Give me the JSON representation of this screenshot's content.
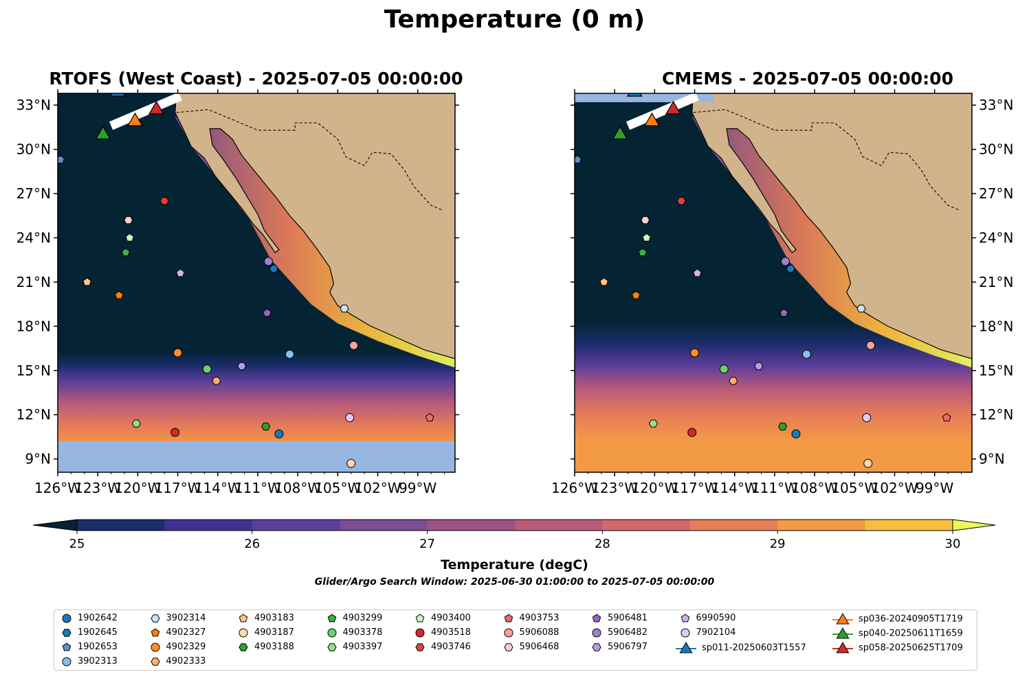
{
  "title": "Temperature (0 m)",
  "panels": [
    {
      "title": "RTOFS (West Coast) - 2025-07-05 00:00:00"
    },
    {
      "title": "CMEMS - 2025-07-05 00:00:00"
    }
  ],
  "axes": {
    "lon_ticks": [
      "126°W",
      "123°W",
      "120°W",
      "117°W",
      "114°W",
      "111°W",
      "108°W",
      "105°W",
      "102°W",
      "99°W"
    ],
    "lon_values": [
      -126,
      -123,
      -120,
      -117,
      -114,
      -111,
      -108,
      -105,
      -102,
      -99
    ],
    "lat_ticks": [
      "33°N",
      "30°N",
      "27°N",
      "24°N",
      "21°N",
      "18°N",
      "15°N",
      "12°N",
      "9°N"
    ],
    "lat_values": [
      33,
      30,
      27,
      24,
      21,
      18,
      15,
      12,
      9
    ],
    "lon_range": [
      -126,
      -96.2
    ],
    "lat_range": [
      8.1,
      33.8
    ]
  },
  "colorbar": {
    "label": "Temperature (degC)",
    "ticks": [
      "25",
      "26",
      "27",
      "28",
      "29",
      "30"
    ],
    "range": [
      25,
      30
    ],
    "extend": "both",
    "colors": [
      "#042333",
      "#1b2c6b",
      "#3d3294",
      "#5d3e9a",
      "#7b4d94",
      "#9c5485",
      "#ba5b7a",
      "#d4676a",
      "#e67d58",
      "#f39a44",
      "#f8be3e",
      "#e8fa5b"
    ]
  },
  "search_window": "Glider/Argo Search Window: 2025-06-30 01:00:00 to 2025-07-05 00:00:00",
  "colors": {
    "land": "#d2b48c",
    "nodata": "#97b6e1",
    "cold": "#042333",
    "warm": "#f39a44",
    "hot": "#e8fa5b"
  },
  "argo_floats": [
    {
      "id": "1902642",
      "marker": "circle",
      "color": "#1f77b4",
      "lon": -109.4,
      "lat": 10.7
    },
    {
      "id": "1902645",
      "marker": "hexagon",
      "color": "#1f77b4",
      "lon": -109.8,
      "lat": 21.9
    },
    {
      "id": "1902653",
      "marker": "pentagon",
      "color": "#5b8fc9",
      "lon": -125.8,
      "lat": 29.3
    },
    {
      "id": "3902313",
      "marker": "circle",
      "color": "#7fc4ea",
      "lon": -108.6,
      "lat": 16.1
    },
    {
      "id": "3902314",
      "marker": "hexagon",
      "color": "#c6e2f7",
      "lon": -104.5,
      "lat": 19.2
    },
    {
      "id": "4902327",
      "marker": "pentagon",
      "color": "#ff7f0e",
      "lon": -121.4,
      "lat": 20.1
    },
    {
      "id": "4902329",
      "marker": "circle",
      "color": "#ff8c2a",
      "lon": -117.0,
      "lat": 16.2
    },
    {
      "id": "4902333",
      "marker": "hexagon",
      "color": "#ffb070",
      "lon": -114.1,
      "lat": 14.3
    },
    {
      "id": "4903183",
      "marker": "pentagon",
      "color": "#ffc38a",
      "lon": -123.8,
      "lat": 21.0
    },
    {
      "id": "4903187",
      "marker": "circle",
      "color": "#ffd9b0",
      "lon": -104.0,
      "lat": 8.7
    },
    {
      "id": "4903188",
      "marker": "hexagon",
      "color": "#2ca02c",
      "lon": -110.4,
      "lat": 11.2
    },
    {
      "id": "4903299",
      "marker": "pentagon",
      "color": "#3cb043",
      "lon": -120.9,
      "lat": 23.0
    },
    {
      "id": "4903378",
      "marker": "circle",
      "color": "#6cd16c",
      "lon": -114.8,
      "lat": 15.1
    },
    {
      "id": "4903397",
      "marker": "hexagon",
      "color": "#98df8a",
      "lon": -120.1,
      "lat": 11.4
    },
    {
      "id": "4903400",
      "marker": "pentagon",
      "color": "#c8f5c0",
      "lon": -120.6,
      "lat": 24.0
    },
    {
      "id": "4903518",
      "marker": "circle",
      "color": "#d62728",
      "lon": -117.2,
      "lat": 10.8
    },
    {
      "id": "4903746",
      "marker": "hexagon",
      "color": "#e0403f",
      "lon": -118.0,
      "lat": 26.5
    },
    {
      "id": "4903753",
      "marker": "pentagon",
      "color": "#f06a6a",
      "lon": -98.1,
      "lat": 11.8
    },
    {
      "id": "5906088",
      "marker": "circle",
      "color": "#f4a0a0",
      "lon": -103.8,
      "lat": 16.7
    },
    {
      "id": "5906468",
      "marker": "hexagon",
      "color": "#fcd0d0",
      "lon": -120.7,
      "lat": 25.2
    },
    {
      "id": "5906481",
      "marker": "pentagon",
      "color": "#9467bd",
      "lon": -110.3,
      "lat": 18.9
    },
    {
      "id": "5906482",
      "marker": "circle",
      "color": "#a07fd0",
      "lon": -110.2,
      "lat": 22.4
    },
    {
      "id": "5906797",
      "marker": "hexagon",
      "color": "#b89ae0",
      "lon": -112.2,
      "lat": 15.3
    },
    {
      "id": "6990590",
      "marker": "pentagon",
      "color": "#d0b0f0",
      "lon": -116.8,
      "lat": 21.6
    },
    {
      "id": "7902104",
      "marker": "circle",
      "color": "#e0c8f8",
      "lon": -104.1,
      "lat": 11.8
    }
  ],
  "gliders": [
    {
      "id": "sp011-20250603T1557",
      "color": "#1f77b4",
      "lon": -121.5,
      "lat": 34.0
    },
    {
      "id": "sp036-20240905T1719",
      "color": "#ff7f0e",
      "lon": -120.2,
      "lat": 32.0
    },
    {
      "id": "sp040-20250611T1659",
      "color": "#2ca02c",
      "lon": -122.6,
      "lat": 31.1
    },
    {
      "id": "sp058-20250625T1709",
      "color": "#d62728",
      "lon": -118.6,
      "lat": 32.8
    }
  ]
}
